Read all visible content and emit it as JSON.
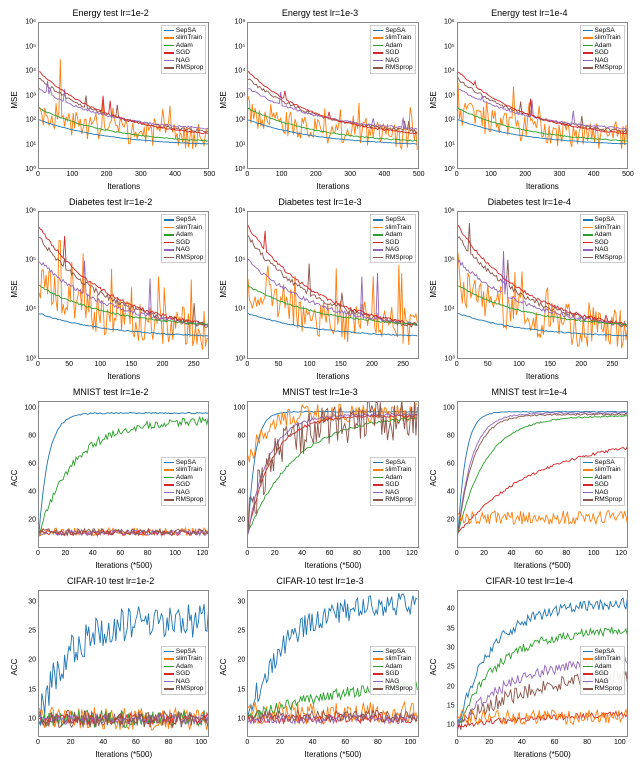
{
  "colors": {
    "SepSA": "#1f77b4",
    "slimTrain": "#ff7f0e",
    "Adam": "#2ca02c",
    "SGD": "#d62728",
    "NAG": "#9467bd",
    "RMSprop": "#8c564b",
    "axis": "#888888",
    "bg": "#ffffff"
  },
  "legend_items": [
    "SepSA",
    "slimTrain",
    "Adam",
    "SGD",
    "NAG",
    "RMSprop"
  ],
  "rows": [
    {
      "dataset": "Energy",
      "ylabel": "MSE",
      "xlabel": "Iterations",
      "yscale": "log",
      "yticks": [
        1,
        10,
        100,
        1000,
        10000,
        100000,
        1000000
      ],
      "yticklabels": [
        "10⁰",
        "10¹",
        "10²",
        "10³",
        "10⁴",
        "10⁵",
        "10⁶"
      ],
      "xlim": [
        0,
        500
      ],
      "xticks": [
        0,
        100,
        200,
        300,
        400,
        500
      ],
      "legend_pos": "top-right",
      "panels": [
        {
          "title": "Energy test lr=1e-2"
        },
        {
          "title": "Energy test lr=1e-3"
        },
        {
          "title": "Energy test lr=1e-4"
        }
      ],
      "series_profile": "energy"
    },
    {
      "dataset": "Diabetes",
      "ylabel": "MSE",
      "xlabel": "Iterations",
      "yscale": "log",
      "yticks": [
        1000,
        10000,
        100000,
        1000000
      ],
      "yticklabels": [
        "10³",
        "10⁴",
        "10⁵",
        "10⁶"
      ],
      "xlim": [
        0,
        275
      ],
      "xticks": [
        0,
        50,
        100,
        150,
        200,
        250
      ],
      "legend_pos": "top-right",
      "panels": [
        {
          "title": "Diabetes test lr=1e-2"
        },
        {
          "title": "Diabetes test lr=1e-3"
        },
        {
          "title": "Diabetes test lr=1e-4"
        }
      ],
      "series_profile": "diabetes"
    },
    {
      "dataset": "MNIST",
      "ylabel": "ACC",
      "xlabel": "Iterations (*500)",
      "yscale": "linear",
      "yticks": [
        20,
        40,
        60,
        80,
        100
      ],
      "yticklabels": [
        "20",
        "40",
        "60",
        "80",
        "100"
      ],
      "ylim": [
        0,
        105
      ],
      "xlim": [
        0,
        125
      ],
      "xticks": [
        0,
        20,
        40,
        60,
        80,
        100,
        120
      ],
      "legend_pos": "mid-right",
      "panels": [
        {
          "title": "MNIST test lr=1e-2"
        },
        {
          "title": "MNIST test lr=1e-3"
        },
        {
          "title": "MNIST test lr=1e-4"
        }
      ],
      "series_profile": "mnist"
    },
    {
      "dataset": "CIFAR-10",
      "ylabel": "ACC",
      "xlabel": "Iterations (*500)",
      "yscale": "linear",
      "yticks": [
        10,
        15,
        20,
        25,
        30
      ],
      "yticklabels": [
        "10",
        "15",
        "20",
        "25",
        "30"
      ],
      "ylim": [
        7,
        32
      ],
      "cifar_ylims": [
        [
          7,
          32
        ],
        [
          7,
          32
        ],
        [
          7,
          45
        ]
      ],
      "cifar_yticks": [
        [
          10,
          15,
          20,
          25,
          30
        ],
        [
          10,
          15,
          20,
          25,
          30
        ],
        [
          10,
          15,
          20,
          25,
          30,
          35,
          40
        ]
      ],
      "xlim": [
        0,
        105
      ],
      "xticks": [
        0,
        20,
        40,
        60,
        80,
        100
      ],
      "legend_pos": "mid-right",
      "panels": [
        {
          "title": "CIFAR-10 test lr=1e-2"
        },
        {
          "title": "CIFAR-10 test lr=1e-3"
        },
        {
          "title": "CIFAR-10 test lr=1e-4"
        }
      ],
      "series_profile": "cifar"
    }
  ],
  "profiles": {
    "energy": [
      {
        "name": "slimTrain",
        "base_lo": 15,
        "base_hi": 200,
        "noise": 2.5,
        "rise": false,
        "spikes": 20,
        "spike_mag": 8
      },
      {
        "name": "RMSprop",
        "base_lo": 20,
        "base_hi": 5000,
        "noise": 0.3,
        "rise": false,
        "spikes": 2,
        "spike_mag": 3
      },
      {
        "name": "NAG",
        "base_lo": 30,
        "base_hi": 2000,
        "noise": 0.2,
        "rise": false,
        "spikes": 3,
        "spike_mag": 4
      },
      {
        "name": "SGD",
        "base_lo": 15,
        "base_hi": 10000,
        "noise": 0.15,
        "rise": false,
        "spikes": 2,
        "spike_mag": 5
      },
      {
        "name": "Adam",
        "base_lo": 10,
        "base_hi": 300,
        "noise": 0.1,
        "rise": false,
        "spikes": 0,
        "spike_mag": 1
      },
      {
        "name": "SepSA",
        "base_lo": 8,
        "base_hi": 100,
        "noise": 0.05,
        "rise": false,
        "spikes": 0,
        "spike_mag": 1
      }
    ],
    "diabetes": [
      {
        "name": "slimTrain",
        "base_lo": 3000,
        "base_hi": 30000,
        "noise": 2.0,
        "rise": false,
        "spikes": 15,
        "spike_mag": 6
      },
      {
        "name": "RMSprop",
        "base_lo": 3000,
        "base_hi": 300000,
        "noise": 0.25,
        "rise": false,
        "spikes": 2,
        "spike_mag": 3
      },
      {
        "name": "NAG",
        "base_lo": 3500,
        "base_hi": 100000,
        "noise": 0.2,
        "rise": false,
        "spikes": 2,
        "spike_mag": 10
      },
      {
        "name": "SGD",
        "base_lo": 3000,
        "base_hi": 500000,
        "noise": 0.15,
        "rise": false,
        "spikes": 1,
        "spike_mag": 3
      },
      {
        "name": "Adam",
        "base_lo": 4000,
        "base_hi": 30000,
        "noise": 0.08,
        "rise": false,
        "spikes": 0,
        "spike_mag": 1
      },
      {
        "name": "SepSA",
        "base_lo": 2500,
        "base_hi": 8000,
        "noise": 0.05,
        "rise": false,
        "spikes": 0,
        "spike_mag": 1
      }
    ],
    "mnist": [
      [
        {
          "name": "SepSA",
          "base_lo": 10,
          "base_hi": 97,
          "noise": 0.5,
          "rise": true,
          "speed": 0.15
        },
        {
          "name": "Adam",
          "base_lo": 10,
          "base_hi": 92,
          "noise": 3,
          "rise": true,
          "speed": 0.04
        },
        {
          "name": "slimTrain",
          "base_lo": 8,
          "base_hi": 14,
          "noise": 3,
          "rise": false
        },
        {
          "name": "SGD",
          "base_lo": 9,
          "base_hi": 12,
          "noise": 2,
          "rise": false
        },
        {
          "name": "NAG",
          "base_lo": 9,
          "base_hi": 12,
          "noise": 2,
          "rise": false
        },
        {
          "name": "RMSprop",
          "base_lo": 9,
          "base_hi": 13,
          "noise": 2.5,
          "rise": false
        }
      ],
      [
        {
          "name": "SepSA",
          "base_lo": 10,
          "base_hi": 98,
          "noise": 0.4,
          "rise": true,
          "speed": 0.2
        },
        {
          "name": "slimTrain",
          "base_lo": 60,
          "base_hi": 97,
          "noise": 8,
          "rise": true,
          "speed": 0.08
        },
        {
          "name": "Adam",
          "base_lo": 10,
          "base_hi": 96,
          "noise": 1,
          "rise": true,
          "speed": 0.03
        },
        {
          "name": "SGD",
          "base_lo": 10,
          "base_hi": 95,
          "noise": 1,
          "rise": true,
          "speed": 0.06
        },
        {
          "name": "NAG",
          "base_lo": 10,
          "base_hi": 96,
          "noise": 1,
          "rise": true,
          "speed": 0.07
        },
        {
          "name": "RMSprop",
          "base_lo": 20,
          "base_hi": 92,
          "noise": 15,
          "rise": true,
          "speed": 0.05
        }
      ],
      [
        {
          "name": "SepSA",
          "base_lo": 10,
          "base_hi": 98,
          "noise": 0.3,
          "rise": true,
          "speed": 0.18
        },
        {
          "name": "NAG",
          "base_lo": 10,
          "base_hi": 97,
          "noise": 0.5,
          "rise": true,
          "speed": 0.1
        },
        {
          "name": "RMSprop",
          "base_lo": 10,
          "base_hi": 96,
          "noise": 0.6,
          "rise": true,
          "speed": 0.09
        },
        {
          "name": "Adam",
          "base_lo": 10,
          "base_hi": 95,
          "noise": 0.5,
          "rise": true,
          "speed": 0.05
        },
        {
          "name": "SGD",
          "base_lo": 10,
          "base_hi": 80,
          "noise": 1,
          "rise": true,
          "speed": 0.018
        },
        {
          "name": "slimTrain",
          "base_lo": 15,
          "base_hi": 28,
          "noise": 5,
          "rise": false
        }
      ]
    ],
    "cifar": [
      [
        {
          "name": "SepSA",
          "base_lo": 10,
          "base_hi": 27,
          "noise": 3,
          "rise": true,
          "speed": 0.05
        },
        {
          "name": "slimTrain",
          "base_lo": 8,
          "base_hi": 12,
          "noise": 2,
          "rise": false
        },
        {
          "name": "Adam",
          "base_lo": 9,
          "base_hi": 11,
          "noise": 1.5,
          "rise": false
        },
        {
          "name": "SGD",
          "base_lo": 9,
          "base_hi": 11,
          "noise": 1,
          "rise": false
        },
        {
          "name": "NAG",
          "base_lo": 9,
          "base_hi": 11,
          "noise": 1,
          "rise": false
        },
        {
          "name": "RMSprop",
          "base_lo": 9,
          "base_hi": 11,
          "noise": 1.5,
          "rise": false
        }
      ],
      [
        {
          "name": "SepSA",
          "base_lo": 10,
          "base_hi": 30,
          "noise": 2,
          "rise": true,
          "speed": 0.04
        },
        {
          "name": "slimTrain",
          "base_lo": 9,
          "base_hi": 13,
          "noise": 2,
          "rise": false
        },
        {
          "name": "Adam",
          "base_lo": 10,
          "base_hi": 17,
          "noise": 1,
          "rise": true,
          "speed": 0.015
        },
        {
          "name": "SGD",
          "base_lo": 9,
          "base_hi": 11,
          "noise": 0.8,
          "rise": false
        },
        {
          "name": "NAG",
          "base_lo": 9,
          "base_hi": 11,
          "noise": 0.8,
          "rise": false
        },
        {
          "name": "RMSprop",
          "base_lo": 9,
          "base_hi": 12,
          "noise": 1,
          "rise": false
        }
      ],
      [
        {
          "name": "SepSA",
          "base_lo": 10,
          "base_hi": 42,
          "noise": 1.5,
          "rise": true,
          "speed": 0.04
        },
        {
          "name": "Adam",
          "base_lo": 10,
          "base_hi": 35,
          "noise": 1.2,
          "rise": true,
          "speed": 0.035
        },
        {
          "name": "NAG",
          "base_lo": 10,
          "base_hi": 28,
          "noise": 1.5,
          "rise": true,
          "speed": 0.025
        },
        {
          "name": "RMSprop",
          "base_lo": 10,
          "base_hi": 24,
          "noise": 2,
          "rise": true,
          "speed": 0.02
        },
        {
          "name": "SGD",
          "base_lo": 10,
          "base_hi": 14,
          "noise": 0.8,
          "rise": true,
          "speed": 0.01
        },
        {
          "name": "slimTrain",
          "base_lo": 10,
          "base_hi": 14,
          "noise": 2,
          "rise": false
        }
      ]
    ]
  },
  "line_width": 0.9,
  "title_fontsize": 9,
  "tick_fontsize": 7,
  "label_fontsize": 8
}
